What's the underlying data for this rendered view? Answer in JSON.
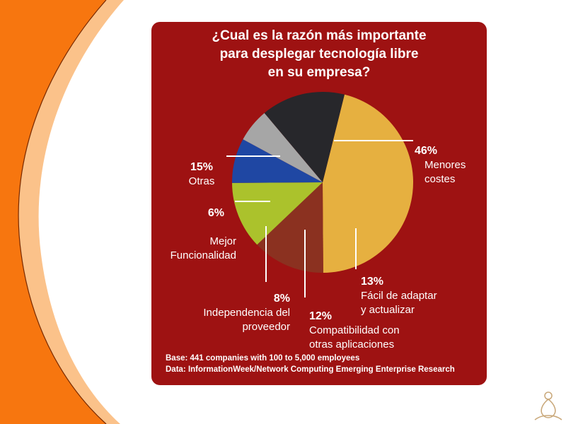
{
  "colors": {
    "panel": "#9e1212",
    "leader": "#ffffff",
    "orange": "#f7760f"
  },
  "chart_data": {
    "type": "pie",
    "title": "¿Cual es la razón más importante\npara desplegar tecnología libre\nen su empresa?",
    "slices": [
      {
        "label": "Menores\ncostes",
        "value": 46,
        "pct": "46%",
        "color": "#e6b040"
      },
      {
        "label": "Fácil de adaptar\ny actualizar",
        "value": 13,
        "pct": "13%",
        "color": "#8b3120"
      },
      {
        "label": "Compatibilidad con\notras aplicaciones",
        "value": 12,
        "pct": "12%",
        "color": "#abc22c"
      },
      {
        "label": "Independencia del\nproveedor",
        "value": 8,
        "pct": "8%",
        "color": "#1f47a3"
      },
      {
        "label": "Mejor\nFuncionalidad",
        "value": 6,
        "pct": "6%",
        "color": "#a6a6a6"
      },
      {
        "label": "Otras",
        "value": 15,
        "pct": "15%",
        "color": "#27272b"
      }
    ],
    "footnotes": {
      "base": "Base: 441 companies with 100 to 5,000 employees",
      "source": "Data: InformationWeek/Network Computing Emerging Enterprise Research"
    }
  }
}
